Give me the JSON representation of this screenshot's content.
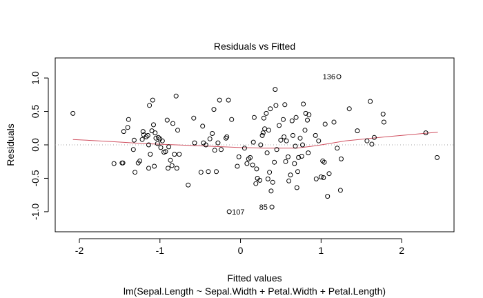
{
  "chart_data": {
    "type": "scatter",
    "title": "Residuals vs Fitted",
    "xlabel": "Fitted values",
    "subtitle": "lm(Sepal.Length ~ Sepal.Width + Petal.Width + Petal.Length)",
    "ylabel": "Residuals",
    "xlim": [
      -2.3,
      2.65
    ],
    "ylim": [
      -1.3,
      1.3
    ],
    "xticks": [
      -2,
      -1,
      0,
      1,
      2
    ],
    "xtick_labels": [
      "-2",
      "-1",
      "0",
      "1",
      "2"
    ],
    "yticks": [
      -1.0,
      -0.5,
      0.0,
      0.5,
      1.0
    ],
    "ytick_labels": [
      "-1.0",
      "-0.5",
      "0.0",
      "0.5",
      "1.0"
    ],
    "grid": false,
    "reference_line": {
      "y": 0,
      "style": "dotted",
      "color": "#a0a0a0"
    },
    "smooth_color": "#d05060",
    "point_color": "#000000",
    "annotations": [
      {
        "label": "136",
        "x": 1.22,
        "y": 1.02
      },
      {
        "label": "107",
        "x": -0.15,
        "y": -1.0
      },
      {
        "label": "85",
        "x": 0.38,
        "y": -0.93
      }
    ],
    "smooth": [
      [
        -2.08,
        0.08
      ],
      [
        -1.6,
        0.05
      ],
      [
        -1.2,
        0.02
      ],
      [
        -0.8,
        0.0
      ],
      [
        -0.4,
        -0.02
      ],
      [
        0.0,
        -0.04
      ],
      [
        0.3,
        -0.05
      ],
      [
        0.7,
        -0.05
      ],
      [
        0.95,
        -0.01
      ],
      [
        1.3,
        0.06
      ],
      [
        1.8,
        0.12
      ],
      [
        2.45,
        0.19
      ]
    ],
    "points": [
      [
        -2.08,
        0.47
      ],
      [
        -1.57,
        -0.28
      ],
      [
        -1.47,
        -0.27
      ],
      [
        -1.46,
        -0.27
      ],
      [
        -1.45,
        0.2
      ],
      [
        -1.4,
        0.26
      ],
      [
        -1.39,
        0.38
      ],
      [
        -1.33,
        -0.07
      ],
      [
        -1.32,
        0.07
      ],
      [
        -1.31,
        -0.41
      ],
      [
        -1.27,
        -0.27
      ],
      [
        -1.25,
        -0.24
      ],
      [
        -1.22,
        0.08
      ],
      [
        -1.21,
        0.2
      ],
      [
        -1.2,
        0.15
      ],
      [
        -1.17,
        0.12
      ],
      [
        -1.15,
        0.14
      ],
      [
        -1.14,
        0.0
      ],
      [
        -1.14,
        -0.35
      ],
      [
        -1.13,
        0.59
      ],
      [
        -1.12,
        -0.14
      ],
      [
        -1.1,
        0.21
      ],
      [
        -1.09,
        0.67
      ],
      [
        -1.08,
        0.3
      ],
      [
        -1.07,
        -0.32
      ],
      [
        -1.06,
        0.18
      ],
      [
        -1.05,
        0.1
      ],
      [
        -1.03,
        0.02
      ],
      [
        -1.02,
        0.11
      ],
      [
        -1.0,
        0.09
      ],
      [
        -0.99,
        -0.04
      ],
      [
        -0.97,
        0.06
      ],
      [
        -0.95,
        -0.11
      ],
      [
        -0.93,
        -0.1
      ],
      [
        -0.91,
        0.37
      ],
      [
        -0.9,
        -0.35
      ],
      [
        -0.89,
        -0.03
      ],
      [
        -0.87,
        -0.23
      ],
      [
        -0.85,
        -0.31
      ],
      [
        -0.84,
        0.32
      ],
      [
        -0.82,
        -0.14
      ],
      [
        -0.8,
        0.73
      ],
      [
        -0.79,
        -0.35
      ],
      [
        -0.78,
        0.22
      ],
      [
        -0.76,
        -0.14
      ],
      [
        -0.65,
        -0.6
      ],
      [
        -0.58,
        0.4
      ],
      [
        -0.57,
        0.03
      ],
      [
        -0.49,
        -0.41
      ],
      [
        -0.47,
        0.28
      ],
      [
        -0.46,
        0.03
      ],
      [
        -0.43,
        0.0
      ],
      [
        -0.4,
        -0.4
      ],
      [
        -0.38,
        0.09
      ],
      [
        -0.35,
        0.17
      ],
      [
        -0.33,
        0.53
      ],
      [
        -0.32,
        -0.08
      ],
      [
        -0.3,
        -0.4
      ],
      [
        -0.28,
        0.03
      ],
      [
        -0.26,
        0.67
      ],
      [
        -0.24,
        -0.07
      ],
      [
        -0.18,
        0.1
      ],
      [
        -0.17,
        0.12
      ],
      [
        -0.15,
        0.67
      ],
      [
        -0.14,
        -1.0
      ],
      [
        -0.11,
        0.38
      ],
      [
        -0.04,
        -0.32
      ],
      [
        -0.02,
        -0.18
      ],
      [
        0.05,
        -0.05
      ],
      [
        0.08,
        -0.28
      ],
      [
        0.1,
        -0.21
      ],
      [
        0.12,
        -0.19
      ],
      [
        0.15,
        -0.3
      ],
      [
        0.16,
        0.04
      ],
      [
        0.17,
        0.41
      ],
      [
        0.19,
        -0.58
      ],
      [
        0.2,
        -0.36
      ],
      [
        0.21,
        -0.5
      ],
      [
        0.24,
        -0.53
      ],
      [
        0.25,
        0.0
      ],
      [
        0.27,
        0.14
      ],
      [
        0.28,
        0.18
      ],
      [
        0.29,
        0.4
      ],
      [
        0.3,
        0.24
      ],
      [
        0.32,
        0.47
      ],
      [
        0.33,
        -0.12
      ],
      [
        0.34,
        -0.51
      ],
      [
        0.35,
        0.22
      ],
      [
        0.36,
        -0.41
      ],
      [
        0.37,
        0.54
      ],
      [
        0.38,
        -0.69
      ],
      [
        0.39,
        -0.93
      ],
      [
        0.4,
        -0.56
      ],
      [
        0.42,
        -0.26
      ],
      [
        0.43,
        0.83
      ],
      [
        0.44,
        0.59
      ],
      [
        0.45,
        -0.07
      ],
      [
        0.48,
        0.29
      ],
      [
        0.5,
        0.07
      ],
      [
        0.53,
        0.38
      ],
      [
        0.54,
        0.12
      ],
      [
        0.55,
        0.6
      ],
      [
        0.56,
        -0.25
      ],
      [
        0.57,
        0.06
      ],
      [
        0.59,
        -0.18
      ],
      [
        0.6,
        -0.54
      ],
      [
        0.62,
        -0.45
      ],
      [
        0.64,
        0.36
      ],
      [
        0.65,
        0.14
      ],
      [
        0.67,
        -0.28
      ],
      [
        0.68,
        -0.02
      ],
      [
        0.69,
        0.41
      ],
      [
        0.7,
        -0.64
      ],
      [
        0.71,
        -0.4
      ],
      [
        0.72,
        -0.19
      ],
      [
        0.74,
        0.1
      ],
      [
        0.76,
        -0.17
      ],
      [
        0.77,
        0.0
      ],
      [
        0.78,
        0.61
      ],
      [
        0.8,
        0.22
      ],
      [
        0.81,
        0.47
      ],
      [
        0.83,
        0.37
      ],
      [
        0.84,
        -0.12
      ],
      [
        0.85,
        0.45
      ],
      [
        0.93,
        0.14
      ],
      [
        0.94,
        -0.51
      ],
      [
        0.97,
        0.06
      ],
      [
        1.0,
        -0.48
      ],
      [
        1.02,
        -0.24
      ],
      [
        1.03,
        -0.49
      ],
      [
        1.04,
        -0.26
      ],
      [
        1.05,
        0.31
      ],
      [
        1.08,
        -0.77
      ],
      [
        1.1,
        -0.43
      ],
      [
        1.16,
        0.34
      ],
      [
        1.2,
        -0.05
      ],
      [
        1.22,
        1.02
      ],
      [
        1.24,
        -0.68
      ],
      [
        1.25,
        -0.21
      ],
      [
        1.35,
        0.54
      ],
      [
        1.45,
        0.21
      ],
      [
        1.57,
        0.06
      ],
      [
        1.61,
        0.65
      ],
      [
        1.63,
        0.01
      ],
      [
        1.66,
        0.11
      ],
      [
        1.77,
        0.46
      ],
      [
        1.78,
        0.34
      ],
      [
        2.3,
        0.18
      ],
      [
        2.44,
        -0.19
      ]
    ]
  }
}
